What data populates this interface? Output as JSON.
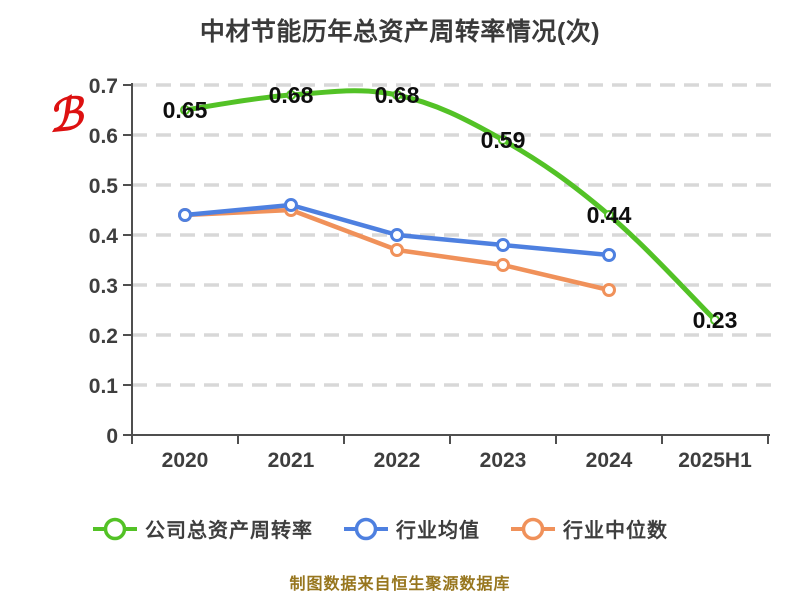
{
  "chart_data": {
    "type": "line",
    "title": "中材节能历年总资产周转率情况(次)",
    "categories": [
      "2020",
      "2021",
      "2022",
      "2023",
      "2024",
      "2025H1"
    ],
    "series": [
      {
        "name": "公司总资产周转率",
        "color": "#53c226",
        "smooth": true,
        "values": [
          0.65,
          0.68,
          0.68,
          0.59,
          0.44,
          0.23
        ],
        "labels": [
          "0.65",
          "0.68",
          "0.68",
          "0.59",
          "0.44",
          "0.23"
        ]
      },
      {
        "name": "行业均值",
        "color": "#4e80e0",
        "smooth": false,
        "values": [
          0.44,
          0.46,
          0.4,
          0.38,
          0.36,
          null
        ],
        "labels": null
      },
      {
        "name": "行业中位数",
        "color": "#f0915a",
        "smooth": false,
        "values": [
          0.44,
          0.45,
          0.37,
          0.34,
          0.29,
          null
        ],
        "labels": null
      }
    ],
    "ylim": [
      0,
      0.7
    ],
    "yticks": [
      "0",
      "0.1",
      "0.2",
      "0.3",
      "0.4",
      "0.5",
      "0.6",
      "0.7"
    ],
    "grid": true,
    "grid_color": "#d8d8d8",
    "axis_color": "#4f4f4f",
    "legend_position": "bottom"
  },
  "caption": "制图数据来自恒生聚源数据库",
  "caption_color": "#97761e",
  "watermark": {
    "glyph": "ℬ",
    "color": "#dd1111"
  }
}
